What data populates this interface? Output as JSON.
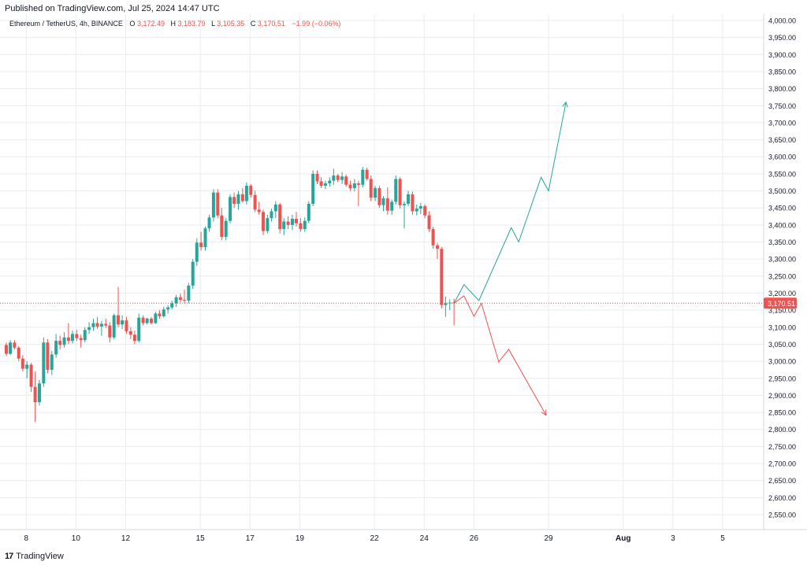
{
  "published": "Published on TradingView.com, Jul 25, 2024 14:47 UTC",
  "footer": {
    "logo_glyph": "17",
    "brand": "TradingView"
  },
  "legend": {
    "symbol": "Ethereum / TetherUS, 4h, BINANCE",
    "open_label": "O",
    "open": "3,172.49",
    "high_label": "H",
    "high": "3,183.79",
    "low_label": "L",
    "low": "3,105.35",
    "close_label": "C",
    "close": "3,170.51",
    "change": "−1.99 (−0.06%)"
  },
  "colors": {
    "up": "#26a69a",
    "down": "#ef5350",
    "grid": "#e9ecf1",
    "axis_text": "#131722",
    "price_line": "#ef5350"
  },
  "chart_data": {
    "type": "candlestick",
    "title": "Ethereum / TetherUS, 4h, BINANCE",
    "ylim": [
      2500,
      4000
    ],
    "y_ticks": [
      "2,550.00",
      "2,600.00",
      "2,650.00",
      "2,700.00",
      "2,750.00",
      "2,800.00",
      "2,850.00",
      "2,900.00",
      "2,950.00",
      "3,000.00",
      "3,050.00",
      "3,100.00",
      "3,150.00",
      "3,200.00",
      "3,250.00",
      "3,300.00",
      "3,350.00",
      "3,400.00",
      "3,450.00",
      "3,500.00",
      "3,550.00",
      "3,600.00",
      "3,650.00",
      "3,700.00",
      "3,750.00",
      "3,800.00",
      "3,850.00",
      "3,900.00",
      "3,950.00",
      "4,000.00"
    ],
    "x_ticks": [
      {
        "label": "8",
        "x": 7
      },
      {
        "label": "10",
        "x": 9
      },
      {
        "label": "12",
        "x": 11
      },
      {
        "label": "15",
        "x": 14
      },
      {
        "label": "17",
        "x": 16
      },
      {
        "label": "19",
        "x": 18
      },
      {
        "label": "22",
        "x": 21
      },
      {
        "label": "24",
        "x": 23
      },
      {
        "label": "26",
        "x": 25
      },
      {
        "label": "29",
        "x": 28
      },
      {
        "label": "Aug",
        "x": 31
      },
      {
        "label": "3",
        "x": 33
      },
      {
        "label": "5",
        "x": 35
      }
    ],
    "x_range": [
      6.2,
      36.3
    ],
    "last_price": "3,170.51",
    "last_price_value": 3170.51,
    "candles": [
      {
        "x": 6.2,
        "o": 3048,
        "h": 3055,
        "l": 3015,
        "c": 3022
      },
      {
        "x": 6.36,
        "o": 3022,
        "h": 3062,
        "l": 3018,
        "c": 3055
      },
      {
        "x": 6.53,
        "o": 3055,
        "h": 3062,
        "l": 3035,
        "c": 3040
      },
      {
        "x": 6.7,
        "o": 3040,
        "h": 3045,
        "l": 3000,
        "c": 3008
      },
      {
        "x": 6.86,
        "o": 3008,
        "h": 3018,
        "l": 2970,
        "c": 2978
      },
      {
        "x": 7.03,
        "o": 2978,
        "h": 3000,
        "l": 2950,
        "c": 2990
      },
      {
        "x": 7.2,
        "o": 2990,
        "h": 2995,
        "l": 2910,
        "c": 2925
      },
      {
        "x": 7.36,
        "o": 2925,
        "h": 2970,
        "l": 2822,
        "c": 2880
      },
      {
        "x": 7.53,
        "o": 2880,
        "h": 2945,
        "l": 2870,
        "c": 2935
      },
      {
        "x": 7.7,
        "o": 2935,
        "h": 3070,
        "l": 2925,
        "c": 3055
      },
      {
        "x": 7.86,
        "o": 3055,
        "h": 3065,
        "l": 2965,
        "c": 2975
      },
      {
        "x": 8.03,
        "o": 2975,
        "h": 3030,
        "l": 2960,
        "c": 3020
      },
      {
        "x": 8.2,
        "o": 3020,
        "h": 3080,
        "l": 3010,
        "c": 3060
      },
      {
        "x": 8.36,
        "o": 3060,
        "h": 3075,
        "l": 3035,
        "c": 3048
      },
      {
        "x": 8.53,
        "o": 3048,
        "h": 3085,
        "l": 3040,
        "c": 3070
      },
      {
        "x": 8.7,
        "o": 3070,
        "h": 3112,
        "l": 3050,
        "c": 3060
      },
      {
        "x": 8.86,
        "o": 3060,
        "h": 3090,
        "l": 3052,
        "c": 3080
      },
      {
        "x": 9.03,
        "o": 3080,
        "h": 3092,
        "l": 3060,
        "c": 3068
      },
      {
        "x": 9.2,
        "o": 3068,
        "h": 3078,
        "l": 3040,
        "c": 3062
      },
      {
        "x": 9.36,
        "o": 3062,
        "h": 3100,
        "l": 3055,
        "c": 3092
      },
      {
        "x": 9.53,
        "o": 3092,
        "h": 3115,
        "l": 3080,
        "c": 3100
      },
      {
        "x": 9.7,
        "o": 3100,
        "h": 3125,
        "l": 3090,
        "c": 3112
      },
      {
        "x": 9.86,
        "o": 3112,
        "h": 3130,
        "l": 3095,
        "c": 3102
      },
      {
        "x": 10.03,
        "o": 3102,
        "h": 3118,
        "l": 3075,
        "c": 3110
      },
      {
        "x": 10.2,
        "o": 3110,
        "h": 3125,
        "l": 3098,
        "c": 3105
      },
      {
        "x": 10.36,
        "o": 3105,
        "h": 3115,
        "l": 3055,
        "c": 3070
      },
      {
        "x": 10.53,
        "o": 3070,
        "h": 3140,
        "l": 3065,
        "c": 3135
      },
      {
        "x": 10.7,
        "o": 3135,
        "h": 3218,
        "l": 3100,
        "c": 3108
      },
      {
        "x": 10.86,
        "o": 3108,
        "h": 3135,
        "l": 3095,
        "c": 3120
      },
      {
        "x": 11.03,
        "o": 3120,
        "h": 3130,
        "l": 3080,
        "c": 3088
      },
      {
        "x": 11.2,
        "o": 3088,
        "h": 3100,
        "l": 3065,
        "c": 3078
      },
      {
        "x": 11.36,
        "o": 3078,
        "h": 3090,
        "l": 3050,
        "c": 3060
      },
      {
        "x": 11.53,
        "o": 3060,
        "h": 3140,
        "l": 3055,
        "c": 3128
      },
      {
        "x": 11.7,
        "o": 3128,
        "h": 3135,
        "l": 3105,
        "c": 3112
      },
      {
        "x": 11.86,
        "o": 3112,
        "h": 3128,
        "l": 3108,
        "c": 3125
      },
      {
        "x": 12.03,
        "o": 3125,
        "h": 3130,
        "l": 3108,
        "c": 3112
      },
      {
        "x": 12.2,
        "o": 3112,
        "h": 3145,
        "l": 3110,
        "c": 3140
      },
      {
        "x": 12.36,
        "o": 3140,
        "h": 3150,
        "l": 3125,
        "c": 3132
      },
      {
        "x": 12.53,
        "o": 3132,
        "h": 3160,
        "l": 3128,
        "c": 3152
      },
      {
        "x": 12.7,
        "o": 3152,
        "h": 3165,
        "l": 3140,
        "c": 3158
      },
      {
        "x": 12.86,
        "o": 3158,
        "h": 3178,
        "l": 3152,
        "c": 3170
      },
      {
        "x": 13.03,
        "o": 3170,
        "h": 3195,
        "l": 3160,
        "c": 3188
      },
      {
        "x": 13.2,
        "o": 3188,
        "h": 3198,
        "l": 3172,
        "c": 3180
      },
      {
        "x": 13.36,
        "o": 3180,
        "h": 3210,
        "l": 3170,
        "c": 3178
      },
      {
        "x": 13.53,
        "o": 3178,
        "h": 3230,
        "l": 3170,
        "c": 3222
      },
      {
        "x": 13.7,
        "o": 3222,
        "h": 3300,
        "l": 3212,
        "c": 3292
      },
      {
        "x": 13.86,
        "o": 3292,
        "h": 3360,
        "l": 3280,
        "c": 3348
      },
      {
        "x": 14.03,
        "o": 3348,
        "h": 3380,
        "l": 3325,
        "c": 3335
      },
      {
        "x": 14.2,
        "o": 3335,
        "h": 3395,
        "l": 3325,
        "c": 3390
      },
      {
        "x": 14.36,
        "o": 3390,
        "h": 3430,
        "l": 3380,
        "c": 3422
      },
      {
        "x": 14.53,
        "o": 3422,
        "h": 3505,
        "l": 3410,
        "c": 3495
      },
      {
        "x": 14.7,
        "o": 3495,
        "h": 3505,
        "l": 3420,
        "c": 3428
      },
      {
        "x": 14.86,
        "o": 3428,
        "h": 3450,
        "l": 3355,
        "c": 3365
      },
      {
        "x": 15.03,
        "o": 3365,
        "h": 3420,
        "l": 3355,
        "c": 3412
      },
      {
        "x": 15.2,
        "o": 3412,
        "h": 3490,
        "l": 3405,
        "c": 3482
      },
      {
        "x": 15.36,
        "o": 3482,
        "h": 3495,
        "l": 3450,
        "c": 3462
      },
      {
        "x": 15.53,
        "o": 3462,
        "h": 3500,
        "l": 3445,
        "c": 3490
      },
      {
        "x": 15.7,
        "o": 3490,
        "h": 3508,
        "l": 3465,
        "c": 3470
      },
      {
        "x": 15.86,
        "o": 3470,
        "h": 3525,
        "l": 3460,
        "c": 3515
      },
      {
        "x": 16.03,
        "o": 3515,
        "h": 3520,
        "l": 3480,
        "c": 3488
      },
      {
        "x": 16.2,
        "o": 3488,
        "h": 3500,
        "l": 3438,
        "c": 3445
      },
      {
        "x": 16.36,
        "o": 3445,
        "h": 3468,
        "l": 3430,
        "c": 3438
      },
      {
        "x": 16.53,
        "o": 3438,
        "h": 3445,
        "l": 3370,
        "c": 3382
      },
      {
        "x": 16.7,
        "o": 3382,
        "h": 3430,
        "l": 3375,
        "c": 3420
      },
      {
        "x": 16.86,
        "o": 3420,
        "h": 3448,
        "l": 3410,
        "c": 3440
      },
      {
        "x": 17.03,
        "o": 3440,
        "h": 3470,
        "l": 3420,
        "c": 3460
      },
      {
        "x": 17.2,
        "o": 3460,
        "h": 3465,
        "l": 3375,
        "c": 3388
      },
      {
        "x": 17.36,
        "o": 3388,
        "h": 3420,
        "l": 3370,
        "c": 3410
      },
      {
        "x": 17.53,
        "o": 3410,
        "h": 3425,
        "l": 3388,
        "c": 3400
      },
      {
        "x": 17.7,
        "o": 3400,
        "h": 3430,
        "l": 3385,
        "c": 3418
      },
      {
        "x": 17.86,
        "o": 3418,
        "h": 3438,
        "l": 3395,
        "c": 3405
      },
      {
        "x": 18.03,
        "o": 3405,
        "h": 3420,
        "l": 3380,
        "c": 3388
      },
      {
        "x": 18.2,
        "o": 3388,
        "h": 3422,
        "l": 3380,
        "c": 3412
      },
      {
        "x": 18.36,
        "o": 3412,
        "h": 3470,
        "l": 3405,
        "c": 3462
      },
      {
        "x": 18.53,
        "o": 3462,
        "h": 3560,
        "l": 3455,
        "c": 3550
      },
      {
        "x": 18.7,
        "o": 3550,
        "h": 3560,
        "l": 3520,
        "c": 3528
      },
      {
        "x": 18.86,
        "o": 3528,
        "h": 3540,
        "l": 3508,
        "c": 3515
      },
      {
        "x": 19.03,
        "o": 3515,
        "h": 3530,
        "l": 3505,
        "c": 3522
      },
      {
        "x": 19.2,
        "o": 3522,
        "h": 3540,
        "l": 3512,
        "c": 3530
      },
      {
        "x": 19.36,
        "o": 3530,
        "h": 3565,
        "l": 3518,
        "c": 3545
      },
      {
        "x": 19.53,
        "o": 3545,
        "h": 3550,
        "l": 3525,
        "c": 3532
      },
      {
        "x": 19.7,
        "o": 3532,
        "h": 3555,
        "l": 3520,
        "c": 3542
      },
      {
        "x": 19.86,
        "o": 3542,
        "h": 3548,
        "l": 3512,
        "c": 3518
      },
      {
        "x": 20.03,
        "o": 3518,
        "h": 3530,
        "l": 3500,
        "c": 3508
      },
      {
        "x": 20.2,
        "o": 3508,
        "h": 3535,
        "l": 3498,
        "c": 3522
      },
      {
        "x": 20.36,
        "o": 3522,
        "h": 3530,
        "l": 3455,
        "c": 3518
      },
      {
        "x": 20.53,
        "o": 3518,
        "h": 3570,
        "l": 3510,
        "c": 3562
      },
      {
        "x": 20.7,
        "o": 3562,
        "h": 3568,
        "l": 3530,
        "c": 3535
      },
      {
        "x": 20.86,
        "o": 3535,
        "h": 3545,
        "l": 3470,
        "c": 3480
      },
      {
        "x": 21.03,
        "o": 3480,
        "h": 3515,
        "l": 3470,
        "c": 3508
      },
      {
        "x": 21.2,
        "o": 3508,
        "h": 3515,
        "l": 3450,
        "c": 3458
      },
      {
        "x": 21.36,
        "o": 3458,
        "h": 3485,
        "l": 3440,
        "c": 3478
      },
      {
        "x": 21.53,
        "o": 3478,
        "h": 3510,
        "l": 3430,
        "c": 3442
      },
      {
        "x": 21.7,
        "o": 3442,
        "h": 3475,
        "l": 3430,
        "c": 3468
      },
      {
        "x": 21.86,
        "o": 3468,
        "h": 3545,
        "l": 3460,
        "c": 3535
      },
      {
        "x": 22.03,
        "o": 3535,
        "h": 3540,
        "l": 3448,
        "c": 3458
      },
      {
        "x": 22.2,
        "o": 3458,
        "h": 3470,
        "l": 3390,
        "c": 3462
      },
      {
        "x": 22.36,
        "o": 3462,
        "h": 3500,
        "l": 3455,
        "c": 3490
      },
      {
        "x": 22.53,
        "o": 3490,
        "h": 3498,
        "l": 3430,
        "c": 3440
      },
      {
        "x": 22.7,
        "o": 3440,
        "h": 3460,
        "l": 3428,
        "c": 3448
      },
      {
        "x": 22.86,
        "o": 3448,
        "h": 3465,
        "l": 3432,
        "c": 3455
      },
      {
        "x": 23.03,
        "o": 3455,
        "h": 3460,
        "l": 3420,
        "c": 3428
      },
      {
        "x": 23.2,
        "o": 3428,
        "h": 3440,
        "l": 3380,
        "c": 3388
      },
      {
        "x": 23.36,
        "o": 3388,
        "h": 3395,
        "l": 3330,
        "c": 3340
      },
      {
        "x": 23.53,
        "o": 3340,
        "h": 3348,
        "l": 3300,
        "c": 3330
      },
      {
        "x": 23.7,
        "o": 3330,
        "h": 3335,
        "l": 3155,
        "c": 3165
      },
      {
        "x": 23.86,
        "o": 3165,
        "h": 3190,
        "l": 3130,
        "c": 3170
      },
      {
        "x": 24.03,
        "o": 3170,
        "h": 3182,
        "l": 3150,
        "c": 3172
      },
      {
        "x": 24.2,
        "o": 3172.49,
        "h": 3183.79,
        "l": 3105.35,
        "c": 3170.51
      }
    ],
    "annotations": [
      {
        "name": "bullish-projection",
        "color": "#26a69a",
        "points": [
          [
            24.2,
            3170
          ],
          [
            24.6,
            3225
          ],
          [
            25.2,
            3178
          ],
          [
            26.5,
            3392
          ],
          [
            26.8,
            3350
          ],
          [
            27.7,
            3540
          ],
          [
            28.0,
            3500
          ],
          [
            28.7,
            3760
          ]
        ]
      },
      {
        "name": "bearish-projection",
        "color": "#ef5350",
        "points": [
          [
            24.2,
            3170
          ],
          [
            24.6,
            3192
          ],
          [
            25.0,
            3132
          ],
          [
            25.3,
            3170
          ],
          [
            26.0,
            2998
          ],
          [
            26.4,
            3035
          ],
          [
            27.9,
            2842
          ]
        ]
      }
    ]
  }
}
